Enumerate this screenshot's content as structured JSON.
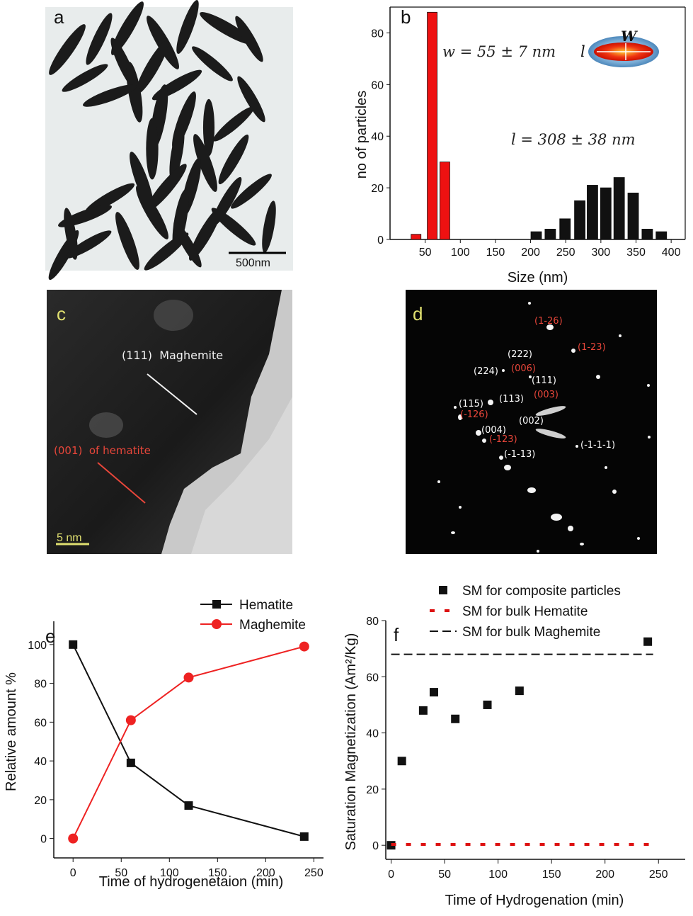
{
  "panel_a": {
    "letter": "a",
    "scale_bar": "500nm"
  },
  "panel_b": {
    "letter": "b",
    "width_label": "w = 55 ± 7 nm",
    "length_label": "l = 308 ± 38 nm",
    "glyph_w": "W",
    "glyph_l": "l"
  },
  "panel_c": {
    "letter": "c",
    "label_maghemite": "(111)  Maghemite",
    "label_hematite": "(001)  of hematite",
    "scale_bar": "5 nm"
  },
  "panel_d": {
    "letter": "d",
    "spots": [
      {
        "text": "(1-26)",
        "color": "#e8463a"
      },
      {
        "text": "(1-23)",
        "color": "#e8463a"
      },
      {
        "text": "(222)",
        "color": "#ffffff"
      },
      {
        "text": "(224)",
        "color": "#ffffff"
      },
      {
        "text": "(006)",
        "color": "#e8463a"
      },
      {
        "text": "(111)",
        "color": "#ffffff"
      },
      {
        "text": "(003)",
        "color": "#e8463a"
      },
      {
        "text": "(115)",
        "color": "#ffffff"
      },
      {
        "text": "(113)",
        "color": "#ffffff"
      },
      {
        "text": "(-126)",
        "color": "#e8463a"
      },
      {
        "text": "(002)",
        "color": "#ffffff"
      },
      {
        "text": "(004)",
        "color": "#ffffff"
      },
      {
        "text": "(-123)",
        "color": "#e8463a"
      },
      {
        "text": "(-1-1-1)",
        "color": "#ffffff"
      },
      {
        "text": "(-1-13)",
        "color": "#ffffff"
      }
    ]
  },
  "chart_data": [
    {
      "panel": "b",
      "type": "bar",
      "xlabel": "Size (nm)",
      "ylabel": "no of particles",
      "xlim": [
        0,
        420
      ],
      "ylim": [
        0,
        90
      ],
      "xticks": [
        50,
        100,
        150,
        200,
        250,
        300,
        350,
        400
      ],
      "yticks": [
        0,
        20,
        40,
        60,
        80
      ],
      "series": [
        {
          "color": "#ee1111",
          "x": [
            37,
            60,
            78
          ],
          "values": [
            2,
            88,
            30
          ]
        },
        {
          "color": "#111111",
          "x": [
            208,
            228,
            249,
            270,
            288,
            307,
            326,
            346,
            366,
            386
          ],
          "values": [
            3,
            4,
            8,
            15,
            21,
            20,
            24,
            18,
            4,
            3
          ]
        }
      ]
    },
    {
      "panel": "e",
      "type": "line",
      "xlabel": "Time of hydrogenetaion (min)",
      "ylabel": "Relative amount %",
      "xlim": [
        -20,
        260
      ],
      "ylim": [
        -10,
        112
      ],
      "xticks": [
        0,
        50,
        100,
        150,
        200,
        250
      ],
      "yticks": [
        0,
        20,
        40,
        60,
        80,
        100
      ],
      "legend_position": "top-right",
      "series": [
        {
          "name": "Hematite",
          "color": "#111111",
          "marker": "square",
          "x": [
            0,
            60,
            120,
            240
          ],
          "values": [
            100,
            39,
            17,
            1
          ]
        },
        {
          "name": "Maghemite",
          "color": "#ee2222",
          "marker": "circle",
          "x": [
            0,
            60,
            120,
            240
          ],
          "values": [
            0,
            61,
            83,
            99
          ]
        }
      ]
    },
    {
      "panel": "f",
      "type": "scatter",
      "xlabel": "Time of Hydrogenation (min)",
      "ylabel": "Saturation Magnetization (Am²/Kg)",
      "xlim": [
        -5,
        275
      ],
      "ylim": [
        -5,
        80
      ],
      "xticks": [
        0,
        50,
        100,
        150,
        200,
        250
      ],
      "yticks": [
        0,
        20,
        40,
        60,
        80
      ],
      "legend_position": "top-right",
      "series": [
        {
          "name": "SM for composite particles",
          "color": "#111111",
          "marker": "square",
          "x": [
            0,
            10,
            30,
            40,
            60,
            90,
            120,
            240
          ],
          "values": [
            0,
            30,
            48,
            54.5,
            45,
            50,
            55,
            72.5
          ]
        },
        {
          "name": "SM for bulk Hematite",
          "color": "#dd1111",
          "style": "dotted",
          "value": 0.3
        },
        {
          "name": "SM for bulk Maghemite",
          "color": "#111111",
          "style": "dashed",
          "value": 68
        }
      ]
    }
  ]
}
